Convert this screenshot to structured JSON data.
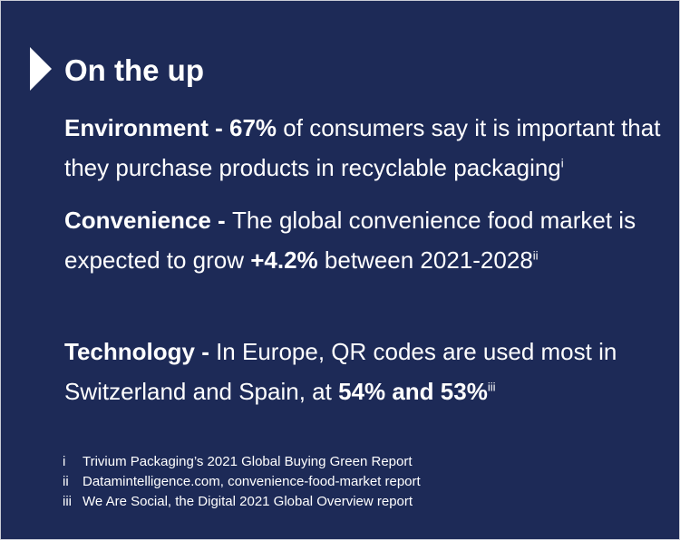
{
  "title": "On the up",
  "stats": [
    {
      "label": "Environment - ",
      "value": "67%",
      "text": " of consumers say it is important that they purchase products in recyclable packaging",
      "ref": "i"
    },
    {
      "label": "Convenience - ",
      "text_before": "The global convenience food market is expected to grow ",
      "value": "+4.2%",
      "text_after": " between 2021-2028",
      "ref": "ii"
    },
    {
      "label": "Technology - ",
      "text": "In Europe, QR codes are used most in Switzerland and Spain, at ",
      "value": "54% and 53%",
      "ref": "iii"
    }
  ],
  "references": [
    {
      "num": "i",
      "text": "Trivium Packaging’s 2021 Global Buying Green Report"
    },
    {
      "num": "ii",
      "text": "Datamintelligence.com, convenience-food-market report"
    },
    {
      "num": "iii",
      "text": "We Are Social, the Digital 2021 Global Overview report"
    }
  ]
}
